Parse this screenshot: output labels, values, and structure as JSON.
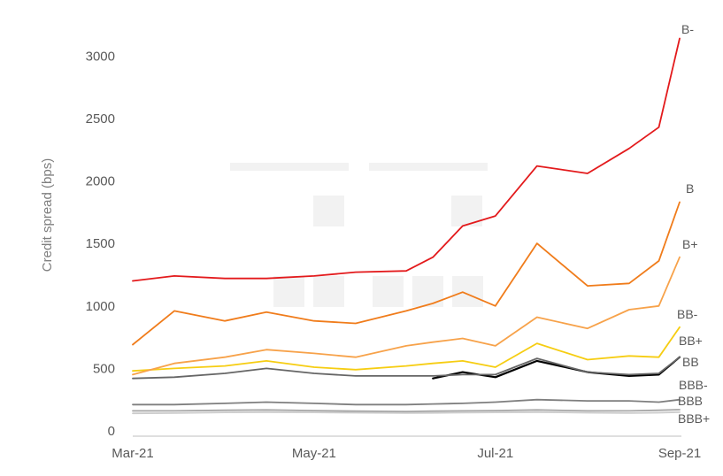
{
  "chart_data": {
    "type": "line",
    "title": "",
    "xlabel": "",
    "ylabel": "Credit spread (bps)",
    "ylim": [
      0,
      3250
    ],
    "yticks": [
      "0",
      "500",
      "1000",
      "1500",
      "2000",
      "2500",
      "3000"
    ],
    "xticks": [
      "Mar-21",
      "May-21",
      "Jul-21",
      "Sep-21"
    ],
    "grid": false,
    "legend": "direct labels at line ends",
    "x_dates": [
      "2021-03-01",
      "2021-03-15",
      "2021-04-01",
      "2021-04-15",
      "2021-05-01",
      "2021-05-15",
      "2021-06-01",
      "2021-06-10",
      "2021-06-20",
      "2021-07-01",
      "2021-07-15",
      "2021-08-01",
      "2021-08-15",
      "2021-08-25",
      "2021-09-01"
    ],
    "series": [
      {
        "name": "B-",
        "color": "#e31a1c",
        "values": [
          1200,
          1240,
          1220,
          1220,
          1240,
          1270,
          1280,
          1390,
          1640,
          1720,
          2120,
          2060,
          2260,
          2430,
          3140
        ]
      },
      {
        "name": "B",
        "color": "#f07c1b",
        "values": [
          690,
          960,
          880,
          950,
          880,
          860,
          960,
          1020,
          1110,
          1000,
          1500,
          1160,
          1180,
          1360,
          1830
        ]
      },
      {
        "name": "B+",
        "color": "#f7a24a",
        "values": [
          450,
          540,
          590,
          650,
          620,
          590,
          680,
          710,
          740,
          680,
          910,
          820,
          970,
          1000,
          1390
        ]
      },
      {
        "name": "BB-",
        "color": "#f6cd12",
        "values": [
          480,
          500,
          520,
          560,
          510,
          490,
          520,
          540,
          560,
          510,
          700,
          570,
          600,
          590,
          830
        ]
      },
      {
        "name": "BB+",
        "color": "#666666",
        "values": [
          420,
          430,
          460,
          500,
          460,
          440,
          440,
          440,
          450,
          450,
          580,
          470,
          450,
          460,
          590
        ]
      },
      {
        "name": "BB",
        "color": "#000000",
        "values": [
          null,
          null,
          null,
          null,
          null,
          null,
          null,
          420,
          470,
          430,
          560,
          470,
          440,
          450,
          590
        ]
      },
      {
        "name": "BBB-",
        "color": "#7f7f7f",
        "values": [
          210,
          210,
          220,
          230,
          220,
          210,
          210,
          215,
          220,
          230,
          250,
          240,
          240,
          230,
          250
        ]
      },
      {
        "name": "BBB",
        "color": "#a6a6a6",
        "values": [
          160,
          160,
          165,
          168,
          162,
          158,
          155,
          158,
          160,
          162,
          168,
          160,
          160,
          165,
          170
        ]
      },
      {
        "name": "BBB+",
        "color": "#cccccc",
        "values": [
          140,
          142,
          148,
          150,
          148,
          145,
          142,
          144,
          146,
          148,
          150,
          145,
          142,
          145,
          150
        ]
      }
    ]
  }
}
